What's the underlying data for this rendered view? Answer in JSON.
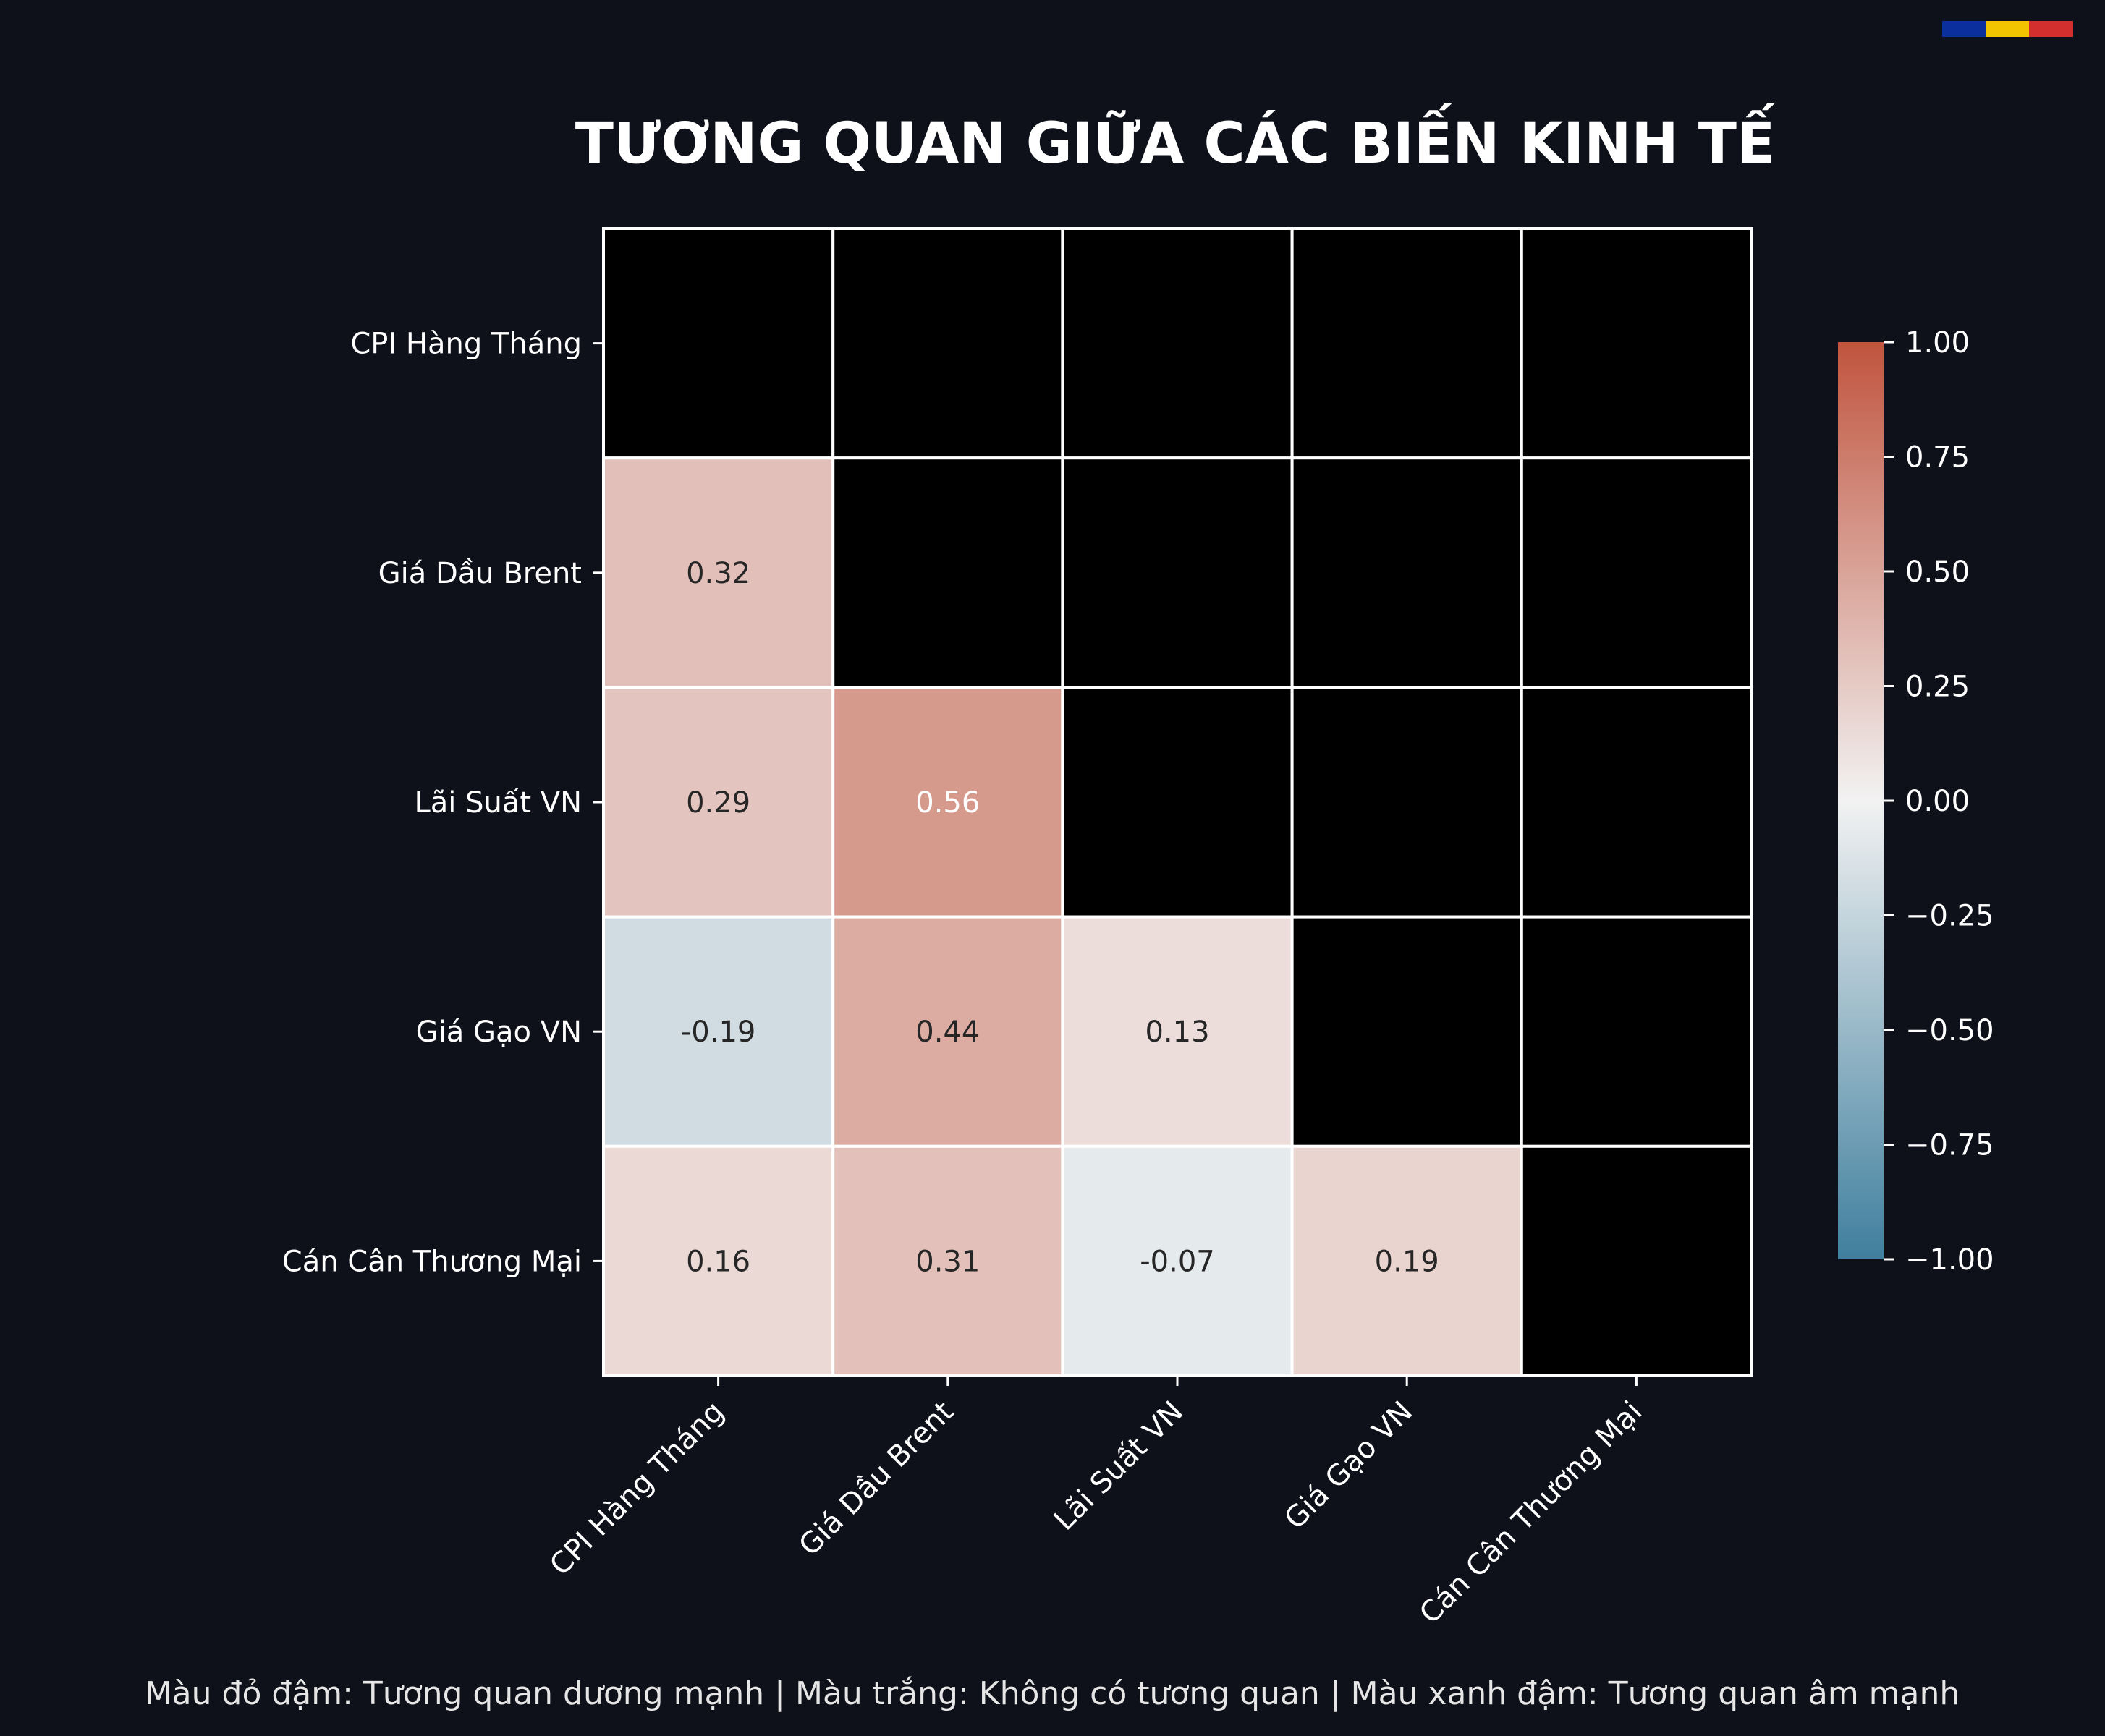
{
  "colors": {
    "background": "#0e111a",
    "masked_cell": "#000000",
    "grid_line": "#ffffff",
    "text": "#ffffff",
    "footnote_text": "#e6e6e6",
    "cmap_negative": "#3f7f9e",
    "cmap_zero": "#f2f2f2",
    "cmap_positive": "#c0543e",
    "flag": [
      "#0b2f9c",
      "#f2c400",
      "#d32f2f"
    ]
  },
  "chart_data": {
    "type": "heatmap",
    "title": "TƯƠNG QUAN GIỮA CÁC BIẾN KINH TẾ",
    "variables": [
      "CPI Hàng Tháng",
      "Giá Dầu Brent",
      "Lãi Suất VN",
      "Giá Gạo VN",
      "Cán Cân Thương Mại"
    ],
    "mask": "upper triangle including diagonal",
    "matrix": [
      [
        null,
        null,
        null,
        null,
        null
      ],
      [
        0.32,
        null,
        null,
        null,
        null
      ],
      [
        0.29,
        0.56,
        null,
        null,
        null
      ],
      [
        -0.19,
        0.44,
        0.13,
        null,
        null
      ],
      [
        0.16,
        0.31,
        -0.07,
        0.19,
        null
      ]
    ],
    "value_labels": [
      [
        null,
        null,
        null,
        null,
        null
      ],
      [
        "0.32",
        null,
        null,
        null,
        null
      ],
      [
        "0.29",
        "0.56",
        null,
        null,
        null
      ],
      [
        "-0.19",
        "0.44",
        "0.13",
        null,
        null
      ],
      [
        "0.16",
        "0.31",
        "-0.07",
        "0.19",
        null
      ]
    ],
    "colorbar": {
      "range": [
        -1,
        1
      ],
      "ticks": [
        1.0,
        0.75,
        0.5,
        0.25,
        0.0,
        -0.25,
        -0.5,
        -0.75,
        -1.0
      ],
      "tick_labels": [
        "1.00",
        "0.75",
        "0.50",
        "0.25",
        "0.00",
        "−0.25",
        "−0.50",
        "−0.75",
        "−1.00"
      ]
    },
    "footnote": "Màu đỏ đậm: Tương quan dương mạnh | Màu trắng: Không có tương quan | Màu xanh đậm: Tương quan âm mạnh"
  }
}
